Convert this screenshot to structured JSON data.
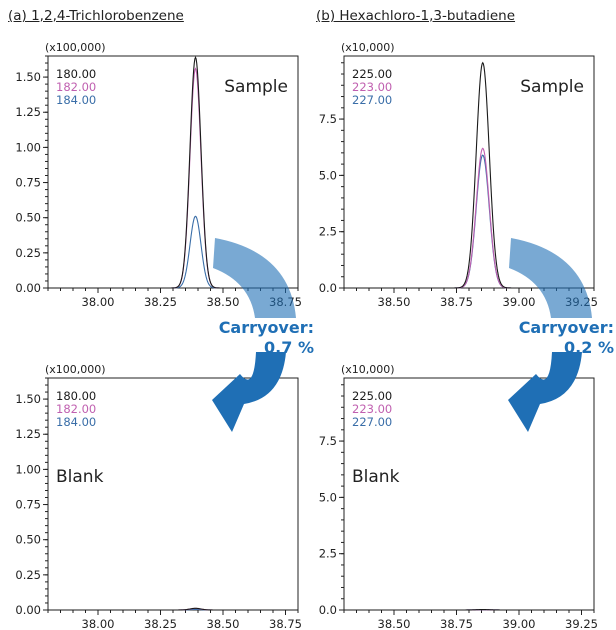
{
  "panels": [
    {
      "label": "(a) 1,2,4-Trichlorobenzene"
    },
    {
      "label": "(b) Hexachloro-1,3-butadiene"
    }
  ],
  "carryover": [
    {
      "label": "Carryover:",
      "value": "0.7 %"
    },
    {
      "label": "Carryover:",
      "value": "0.2 %"
    }
  ],
  "colors": {
    "trace_1": "#1a1a1a",
    "trace_2": "#c060b0",
    "trace_3": "#3a6ea8",
    "arrow": "#1f6fb5"
  },
  "chart_data": [
    {
      "type": "line",
      "panel": "a",
      "annotation": "Sample",
      "multiplier": "(x100,000)",
      "xlim": [
        37.8,
        38.8
      ],
      "ylim": [
        0,
        1.65
      ],
      "xticks": [
        "38.00",
        "38.25",
        "38.50",
        "38.75"
      ],
      "yticks": [
        "0.00",
        "0.25",
        "0.50",
        "0.75",
        "1.00",
        "1.25",
        "1.50"
      ],
      "peak": {
        "center": 38.39,
        "width": 0.022
      },
      "series": [
        {
          "name": "180.00",
          "peak_height": 1.64
        },
        {
          "name": "182.00",
          "peak_height": 1.56
        },
        {
          "name": "184.00",
          "peak_height": 0.51
        }
      ]
    },
    {
      "type": "line",
      "panel": "b",
      "annotation": "Sample",
      "multiplier": "(x10,000)",
      "xlim": [
        38.3,
        39.3
      ],
      "ylim": [
        0,
        10.3
      ],
      "xticks": [
        "38.50",
        "38.75",
        "39.00",
        "39.25"
      ],
      "yticks": [
        "0.0",
        "2.5",
        "5.0",
        "7.5"
      ],
      "peak": {
        "center": 38.855,
        "width": 0.026
      },
      "series": [
        {
          "name": "225.00",
          "peak_height": 10.0
        },
        {
          "name": "223.00",
          "peak_height": 6.2
        },
        {
          "name": "227.00",
          "peak_height": 5.9
        }
      ]
    },
    {
      "type": "line",
      "panel": "a",
      "annotation": "Blank",
      "multiplier": "(x100,000)",
      "xlim": [
        37.8,
        38.8
      ],
      "ylim": [
        0,
        1.65
      ],
      "xticks": [
        "38.00",
        "38.25",
        "38.50",
        "38.75"
      ],
      "yticks": [
        "0.00",
        "0.25",
        "0.50",
        "0.75",
        "1.00",
        "1.25",
        "1.50"
      ],
      "peak": {
        "center": 38.39,
        "width": 0.022
      },
      "series": [
        {
          "name": "180.00",
          "peak_height": 0.012
        },
        {
          "name": "182.00",
          "peak_height": 0.011
        },
        {
          "name": "184.00",
          "peak_height": 0.004
        }
      ]
    },
    {
      "type": "line",
      "panel": "b",
      "annotation": "Blank",
      "multiplier": "(x10,000)",
      "xlim": [
        38.3,
        39.3
      ],
      "ylim": [
        0,
        10.3
      ],
      "xticks": [
        "38.50",
        "38.75",
        "39.00",
        "39.25"
      ],
      "yticks": [
        "0.0",
        "2.5",
        "5.0",
        "7.5"
      ],
      "peak": {
        "center": 38.855,
        "width": 0.026
      },
      "series": [
        {
          "name": "225.00",
          "peak_height": 0.02
        },
        {
          "name": "223.00",
          "peak_height": 0.012
        },
        {
          "name": "227.00",
          "peak_height": 0.012
        }
      ]
    }
  ]
}
